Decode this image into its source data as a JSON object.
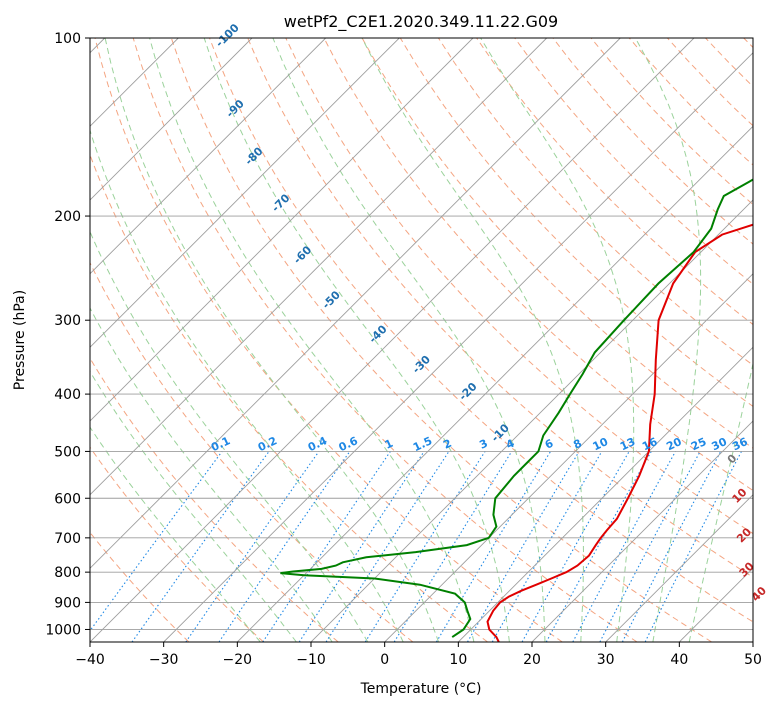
{
  "chart_data": {
    "type": "line",
    "title": "wetPf2_C2E1.2020.349.11.22.G09",
    "xlabel": "Temperature (°C)",
    "ylabel": "Pressure (hPa)",
    "xlim": [
      -40,
      50
    ],
    "ylim": [
      1050,
      100
    ],
    "y_scale": "log",
    "x_ticks": [
      -40,
      -30,
      -20,
      -10,
      0,
      10,
      20,
      30,
      40,
      50
    ],
    "y_ticks": [
      100,
      200,
      300,
      400,
      500,
      600,
      700,
      800,
      900,
      1000
    ],
    "grid": true,
    "series": [
      {
        "color": "#e00000",
        "points": [
          [
            1050,
            15.5
          ],
          [
            1030,
            14.5
          ],
          [
            1000,
            12.5
          ],
          [
            970,
            11.2
          ],
          [
            930,
            10.5
          ],
          [
            900,
            10.3
          ],
          [
            880,
            10.7
          ],
          [
            860,
            11.6
          ],
          [
            840,
            12.8
          ],
          [
            820,
            14.0
          ],
          [
            800,
            15.2
          ],
          [
            780,
            15.8
          ],
          [
            750,
            16.0
          ],
          [
            720,
            15.5
          ],
          [
            700,
            15.2
          ],
          [
            680,
            15.0
          ],
          [
            650,
            14.8
          ],
          [
            600,
            13.5
          ],
          [
            550,
            12.0
          ],
          [
            500,
            10.0
          ],
          [
            450,
            6.5
          ],
          [
            400,
            3.0
          ],
          [
            350,
            -1.5
          ],
          [
            300,
            -6.5
          ],
          [
            260,
            -9.5
          ],
          [
            230,
            -10.8
          ],
          [
            215,
            -9.5
          ],
          [
            205,
            -6.0
          ],
          [
            190,
            -2.5
          ],
          [
            175,
            1.0
          ],
          [
            160,
            4.5
          ],
          [
            145,
            7.5
          ],
          [
            130,
            10.0
          ],
          [
            120,
            12.0
          ],
          [
            110,
            13.0
          ],
          [
            100,
            14.0
          ]
        ]
      },
      {
        "color": "#008000",
        "points": [
          [
            1030,
            8.5
          ],
          [
            1000,
            9.0
          ],
          [
            960,
            8.5
          ],
          [
            930,
            7.0
          ],
          [
            900,
            5.5
          ],
          [
            870,
            3.0
          ],
          [
            840,
            -3.0
          ],
          [
            820,
            -10.0
          ],
          [
            810,
            -20.0
          ],
          [
            803,
            -23.5
          ],
          [
            798,
            -22.0
          ],
          [
            790,
            -18.5
          ],
          [
            780,
            -17.0
          ],
          [
            770,
            -16.5
          ],
          [
            755,
            -14.0
          ],
          [
            740,
            -8.0
          ],
          [
            720,
            -2.0
          ],
          [
            700,
            0.0
          ],
          [
            670,
            -0.5
          ],
          [
            640,
            -2.5
          ],
          [
            600,
            -4.5
          ],
          [
            550,
            -5.0
          ],
          [
            520,
            -5.0
          ],
          [
            500,
            -5.0
          ],
          [
            470,
            -6.5
          ],
          [
            430,
            -7.5
          ],
          [
            400,
            -8.5
          ],
          [
            370,
            -9.5
          ],
          [
            340,
            -10.8
          ],
          [
            300,
            -11.2
          ],
          [
            260,
            -11.5
          ],
          [
            230,
            -11.0
          ],
          [
            210,
            -11.8
          ],
          [
            195,
            -13.5
          ],
          [
            185,
            -14.5
          ],
          [
            175,
            -13.0
          ],
          [
            165,
            -11.5
          ],
          [
            150,
            -11.0
          ],
          [
            135,
            -10.0
          ],
          [
            120,
            -7.5
          ],
          [
            110,
            -5.0
          ],
          [
            100,
            -3.5
          ]
        ]
      }
    ],
    "mixing_ratio_labels": [
      "0.1",
      "0.2",
      "0.4",
      "0.6",
      "1",
      "1.5",
      "2",
      "3",
      "4",
      "6",
      "8",
      "10",
      "13",
      "16",
      "20",
      "25",
      "30",
      "36"
    ],
    "moist_adiabat_labels": [
      "-100",
      "-90",
      "-80",
      "-70",
      "-60",
      "-50",
      "-40",
      "-30",
      "-20",
      "-10"
    ],
    "dry_adiabat_labels": [
      "0",
      "10",
      "20",
      "30",
      "40"
    ],
    "colors": {
      "isotherm": "#9e9e9e",
      "dry_adiabat": "#f4a582",
      "moist_adiabat": "#9bd29b",
      "mixing_ratio": "#1e88e5",
      "moist_label": "#1f6faf",
      "dry_label": "#c62828",
      "zero_label": "#777777"
    }
  }
}
